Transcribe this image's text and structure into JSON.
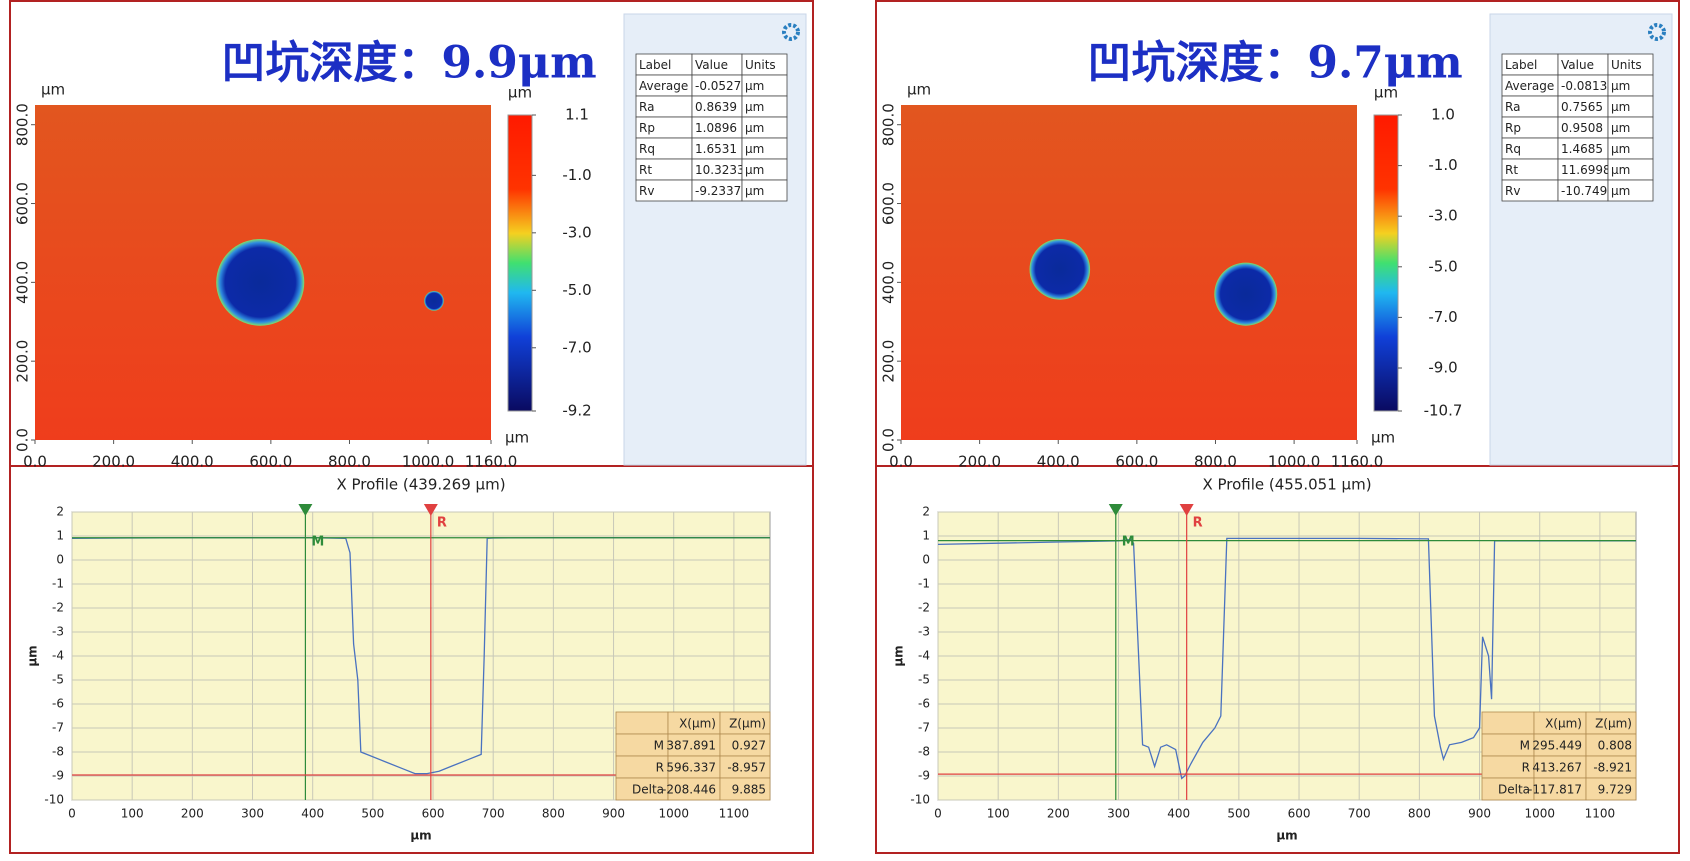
{
  "chart_data": [
    {
      "type": "line",
      "annotation": "凹坑深度：9.9μm",
      "map": {
        "ylabel": "µm",
        "xlabel": "µm",
        "colorbar_label": "µm",
        "xlim": [
          0,
          1160
        ],
        "ylim": [
          0,
          850
        ],
        "xticks": [
          {
            "value": 0,
            "label": "0.0"
          },
          {
            "value": 200,
            "label": "200.0"
          },
          {
            "value": 400,
            "label": "400.0"
          },
          {
            "value": 600,
            "label": "600.0"
          },
          {
            "value": 800,
            "label": "800.0"
          },
          {
            "value": 1000,
            "label": "1000.0"
          },
          {
            "value": 1160,
            "label": "1160.0"
          }
        ],
        "yticks": [
          {
            "value": 0,
            "label": "0.0"
          },
          {
            "value": 200,
            "label": "200.0"
          },
          {
            "value": 400,
            "label": "400.0"
          },
          {
            "value": 600,
            "label": "600.0"
          },
          {
            "value": 800,
            "label": "800.0"
          }
        ],
        "colorbar_lim": [
          -9.2,
          1.1
        ],
        "colorbar_ticks": [
          1.1,
          {
            "value": -1,
            "label": "-1.0"
          },
          {
            "value": -3,
            "label": "-3.0"
          },
          {
            "value": -5,
            "label": "-5.0"
          },
          {
            "value": -7,
            "label": "-7.0"
          },
          -9.2
        ]
      },
      "stats": {
        "header": [
          "Label",
          "Value",
          "Units"
        ],
        "rows": [
          [
            "Average",
            -0.0527,
            "µm"
          ],
          [
            "Ra",
            0.8639,
            "µm"
          ],
          [
            "Rp",
            1.0896,
            "µm"
          ],
          [
            "Rq",
            1.6531,
            "µm"
          ],
          [
            "Rt",
            10.3233,
            "µm"
          ],
          [
            "Rv",
            -9.2337,
            "µm"
          ]
        ]
      },
      "title": "X Profile (439.269 µm)",
      "xlabel": "µm",
      "ylabel": "µm",
      "xlim": [
        0,
        1160
      ],
      "ylim": [
        -10,
        2
      ],
      "xticks": [
        0,
        100,
        200,
        300,
        400,
        500,
        600,
        700,
        800,
        900,
        1000,
        1100
      ],
      "yticks": [
        -10,
        -9,
        -8,
        -7,
        -6,
        -5,
        -4,
        -3,
        -2,
        -1,
        0,
        1,
        2
      ],
      "grid": true,
      "x": [
        0,
        100,
        200,
        300,
        400,
        455,
        462,
        468,
        475,
        480,
        490,
        520,
        550,
        570,
        590,
        610,
        630,
        660,
        680,
        685,
        690,
        700,
        800,
        900,
        1000,
        1100,
        1160
      ],
      "series": [
        {
          "color": "#4a72c0",
          "values": [
            0.9,
            0.92,
            0.93,
            0.93,
            0.93,
            0.9,
            0.3,
            -3.5,
            -5,
            -8,
            -8.1,
            -8.4,
            -8.7,
            -8.9,
            -8.9,
            -8.8,
            -8.6,
            -8.3,
            -8.1,
            -4,
            0.9,
            0.92,
            0.93,
            0.93,
            0.93,
            0.93,
            0.93
          ]
        }
      ],
      "cursor_header": [
        "X(µm)",
        "Z(µm)"
      ],
      "cursors": [
        {
          "label": "M",
          "x": 387.891,
          "z": 0.927,
          "color": "#2e8b3a"
        },
        {
          "label": "R",
          "x": 596.337,
          "z": -8.957,
          "color": "#e04040"
        }
      ],
      "delta": {
        "label": "Delta",
        "x": -208.446,
        "z": 9.885
      }
    },
    {
      "type": "line",
      "annotation": "凹坑深度：9.7μm",
      "map": {
        "ylabel": "µm",
        "xlabel": "µm",
        "colorbar_label": "µm",
        "xlim": [
          0,
          1160
        ],
        "ylim": [
          0,
          850
        ],
        "xticks": [
          {
            "value": 0,
            "label": "0.0"
          },
          {
            "value": 200,
            "label": "200.0"
          },
          {
            "value": 400,
            "label": "400.0"
          },
          {
            "value": 600,
            "label": "600.0"
          },
          {
            "value": 800,
            "label": "800.0"
          },
          {
            "value": 1000,
            "label": "1000.0"
          },
          {
            "value": 1160,
            "label": "1160.0"
          }
        ],
        "yticks": [
          {
            "value": 0,
            "label": "0.0"
          },
          {
            "value": 200,
            "label": "200.0"
          },
          {
            "value": 400,
            "label": "400.0"
          },
          {
            "value": 600,
            "label": "600.0"
          },
          {
            "value": 800,
            "label": "800.0"
          }
        ],
        "colorbar_lim": [
          -10.7,
          1.0
        ],
        "colorbar_ticks": [
          {
            "value": 1,
            "label": "1.0"
          },
          {
            "value": -1,
            "label": "-1.0"
          },
          {
            "value": -3,
            "label": "-3.0"
          },
          {
            "value": -5,
            "label": "-5.0"
          },
          {
            "value": -7,
            "label": "-7.0"
          },
          {
            "value": -9,
            "label": "-9.0"
          },
          -10.7
        ]
      },
      "stats": {
        "header": [
          "Label",
          "Value",
          "Units"
        ],
        "rows": [
          [
            "Average",
            -0.0813,
            "µm"
          ],
          [
            "Ra",
            0.7565,
            "µm"
          ],
          [
            "Rp",
            0.9508,
            "µm"
          ],
          [
            "Rq",
            1.4685,
            "µm"
          ],
          [
            "Rt",
            11.6998,
            "µm"
          ],
          [
            "Rv",
            -10.7491,
            "µm"
          ]
        ]
      },
      "title": "X Profile (455.051 µm)",
      "xlabel": "µm",
      "ylabel": "µm",
      "xlim": [
        0,
        1160
      ],
      "ylim": [
        -10,
        2
      ],
      "xticks": [
        0,
        100,
        200,
        300,
        400,
        500,
        600,
        700,
        800,
        900,
        1000,
        1100
      ],
      "yticks": [
        -10,
        -9,
        -8,
        -7,
        -6,
        -5,
        -4,
        -3,
        -2,
        -1,
        0,
        1,
        2
      ],
      "grid": true,
      "x": [
        0,
        100,
        200,
        300,
        320,
        325,
        340,
        350,
        360,
        370,
        380,
        395,
        405,
        410,
        420,
        440,
        460,
        470,
        480,
        500,
        600,
        700,
        815,
        825,
        835,
        840,
        850,
        870,
        890,
        900,
        905,
        915,
        920,
        925,
        1000,
        1100,
        1160
      ],
      "series": [
        {
          "color": "#4a72c0",
          "values": [
            0.65,
            0.7,
            0.75,
            0.8,
            0.85,
            0.7,
            -7.7,
            -7.8,
            -8.6,
            -7.8,
            -7.7,
            -7.9,
            -9.1,
            -9,
            -8.5,
            -7.6,
            -7,
            -6.5,
            0.9,
            0.9,
            0.9,
            0.9,
            0.88,
            -6.5,
            -7.8,
            -8.3,
            -7.7,
            -7.6,
            -7.4,
            -7,
            -3.2,
            -4,
            -5.8,
            0.8,
            0.8,
            0.8,
            0.8
          ]
        }
      ],
      "cursor_header": [
        "X(µm)",
        "Z(µm)"
      ],
      "cursors": [
        {
          "label": "M",
          "x": 295.449,
          "z": 0.808,
          "color": "#2e8b3a"
        },
        {
          "label": "R",
          "x": 413.267,
          "z": -8.921,
          "color": "#e04040"
        }
      ],
      "delta": {
        "label": "Delta",
        "x": -117.817,
        "z": 9.729
      }
    }
  ]
}
